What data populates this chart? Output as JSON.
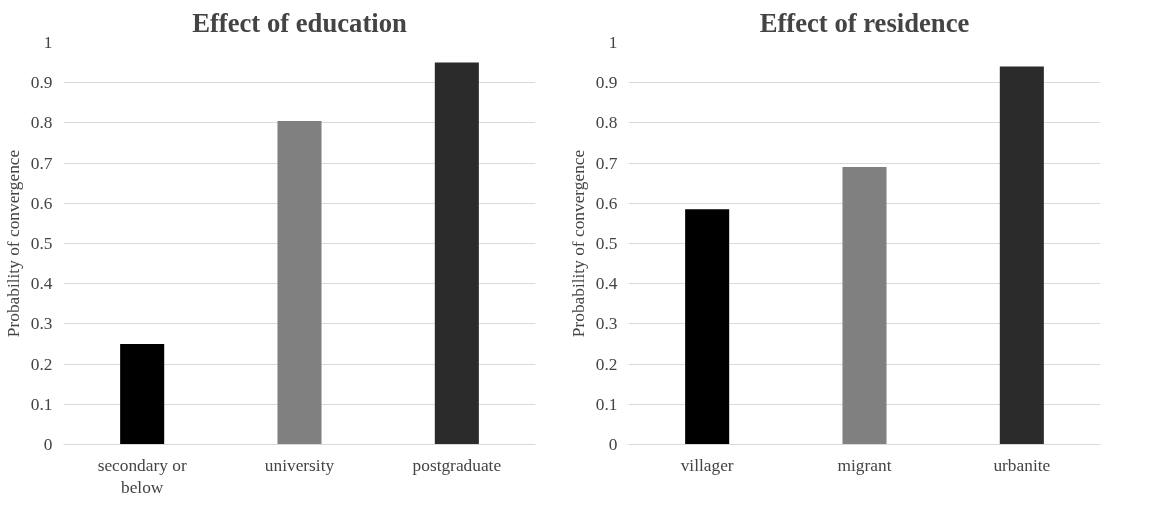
{
  "chart_data": [
    {
      "type": "bar",
      "title": "Effect of education",
      "ylabel": "Probability of convergence",
      "categories": [
        "secondary or\nbelow",
        "university",
        "postgraduate"
      ],
      "values": [
        0.25,
        0.805,
        0.95
      ],
      "colors": [
        "#000000",
        "#808080",
        "#2b2b2b"
      ],
      "ylim": [
        0,
        1
      ],
      "yticks": [
        0,
        0.1,
        0.2,
        0.3,
        0.4,
        0.5,
        0.6,
        0.7,
        0.8,
        0.9,
        1
      ],
      "grid": "y"
    },
    {
      "type": "bar",
      "title": "Effect of residence",
      "ylabel": "Probability of convergence",
      "categories": [
        "villager",
        "migrant",
        "urbanite"
      ],
      "values": [
        0.585,
        0.69,
        0.94
      ],
      "colors": [
        "#000000",
        "#808080",
        "#2b2b2b"
      ],
      "ylim": [
        0,
        1
      ],
      "yticks": [
        0,
        0.1,
        0.2,
        0.3,
        0.4,
        0.5,
        0.6,
        0.7,
        0.8,
        0.9,
        1
      ],
      "grid": "y"
    }
  ]
}
